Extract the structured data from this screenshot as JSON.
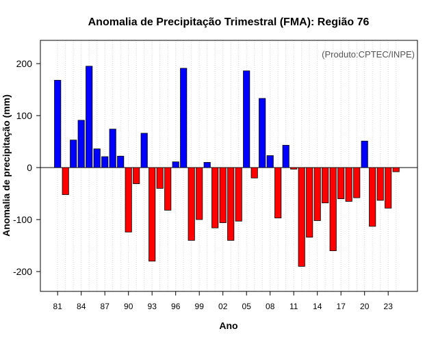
{
  "chart_data": {
    "type": "bar",
    "title": "Anomalia de Precipitação Trimestral (FMA): Região 76",
    "xlabel": "Ano",
    "ylabel": "Anomalia de precipitação (mm)",
    "annotation": "(Produto:CPTEC/INPE)",
    "ylim": [
      -240,
      245
    ],
    "yticks": [
      -200,
      -100,
      0,
      100,
      200
    ],
    "grid": true,
    "categories": [
      "1981",
      "1982",
      "1983",
      "1984",
      "1985",
      "1986",
      "1987",
      "1988",
      "1989",
      "1990",
      "1991",
      "1992",
      "1993",
      "1994",
      "1995",
      "1996",
      "1997",
      "1998",
      "1999",
      "2000",
      "2001",
      "2002",
      "2003",
      "2004",
      "2005",
      "2006",
      "2007",
      "2008",
      "2009",
      "2010",
      "2011",
      "2012",
      "2013",
      "2014",
      "2015",
      "2016",
      "2017",
      "2018",
      "2019",
      "2020",
      "2021",
      "2022",
      "2023",
      "2024"
    ],
    "values": [
      168,
      -52,
      53,
      91,
      195,
      36,
      21,
      74,
      22,
      -124,
      -31,
      66,
      -180,
      -40,
      -82,
      11,
      191,
      -140,
      -100,
      10,
      -116,
      -106,
      -140,
      -103,
      186,
      -20,
      133,
      23,
      -97,
      43,
      -3,
      -190,
      -134,
      -102,
      -68,
      -160,
      -60,
      -65,
      -58,
      51,
      -113,
      -63,
      -78,
      -8
    ],
    "xtick_labels": [
      "81",
      "84",
      "87",
      "90",
      "93",
      "96",
      "99",
      "02",
      "05",
      "08",
      "11",
      "14",
      "17",
      "20",
      "23"
    ],
    "xtick_every": 3,
    "positive_color": "#0000ff",
    "negative_color": "#ff0000"
  }
}
